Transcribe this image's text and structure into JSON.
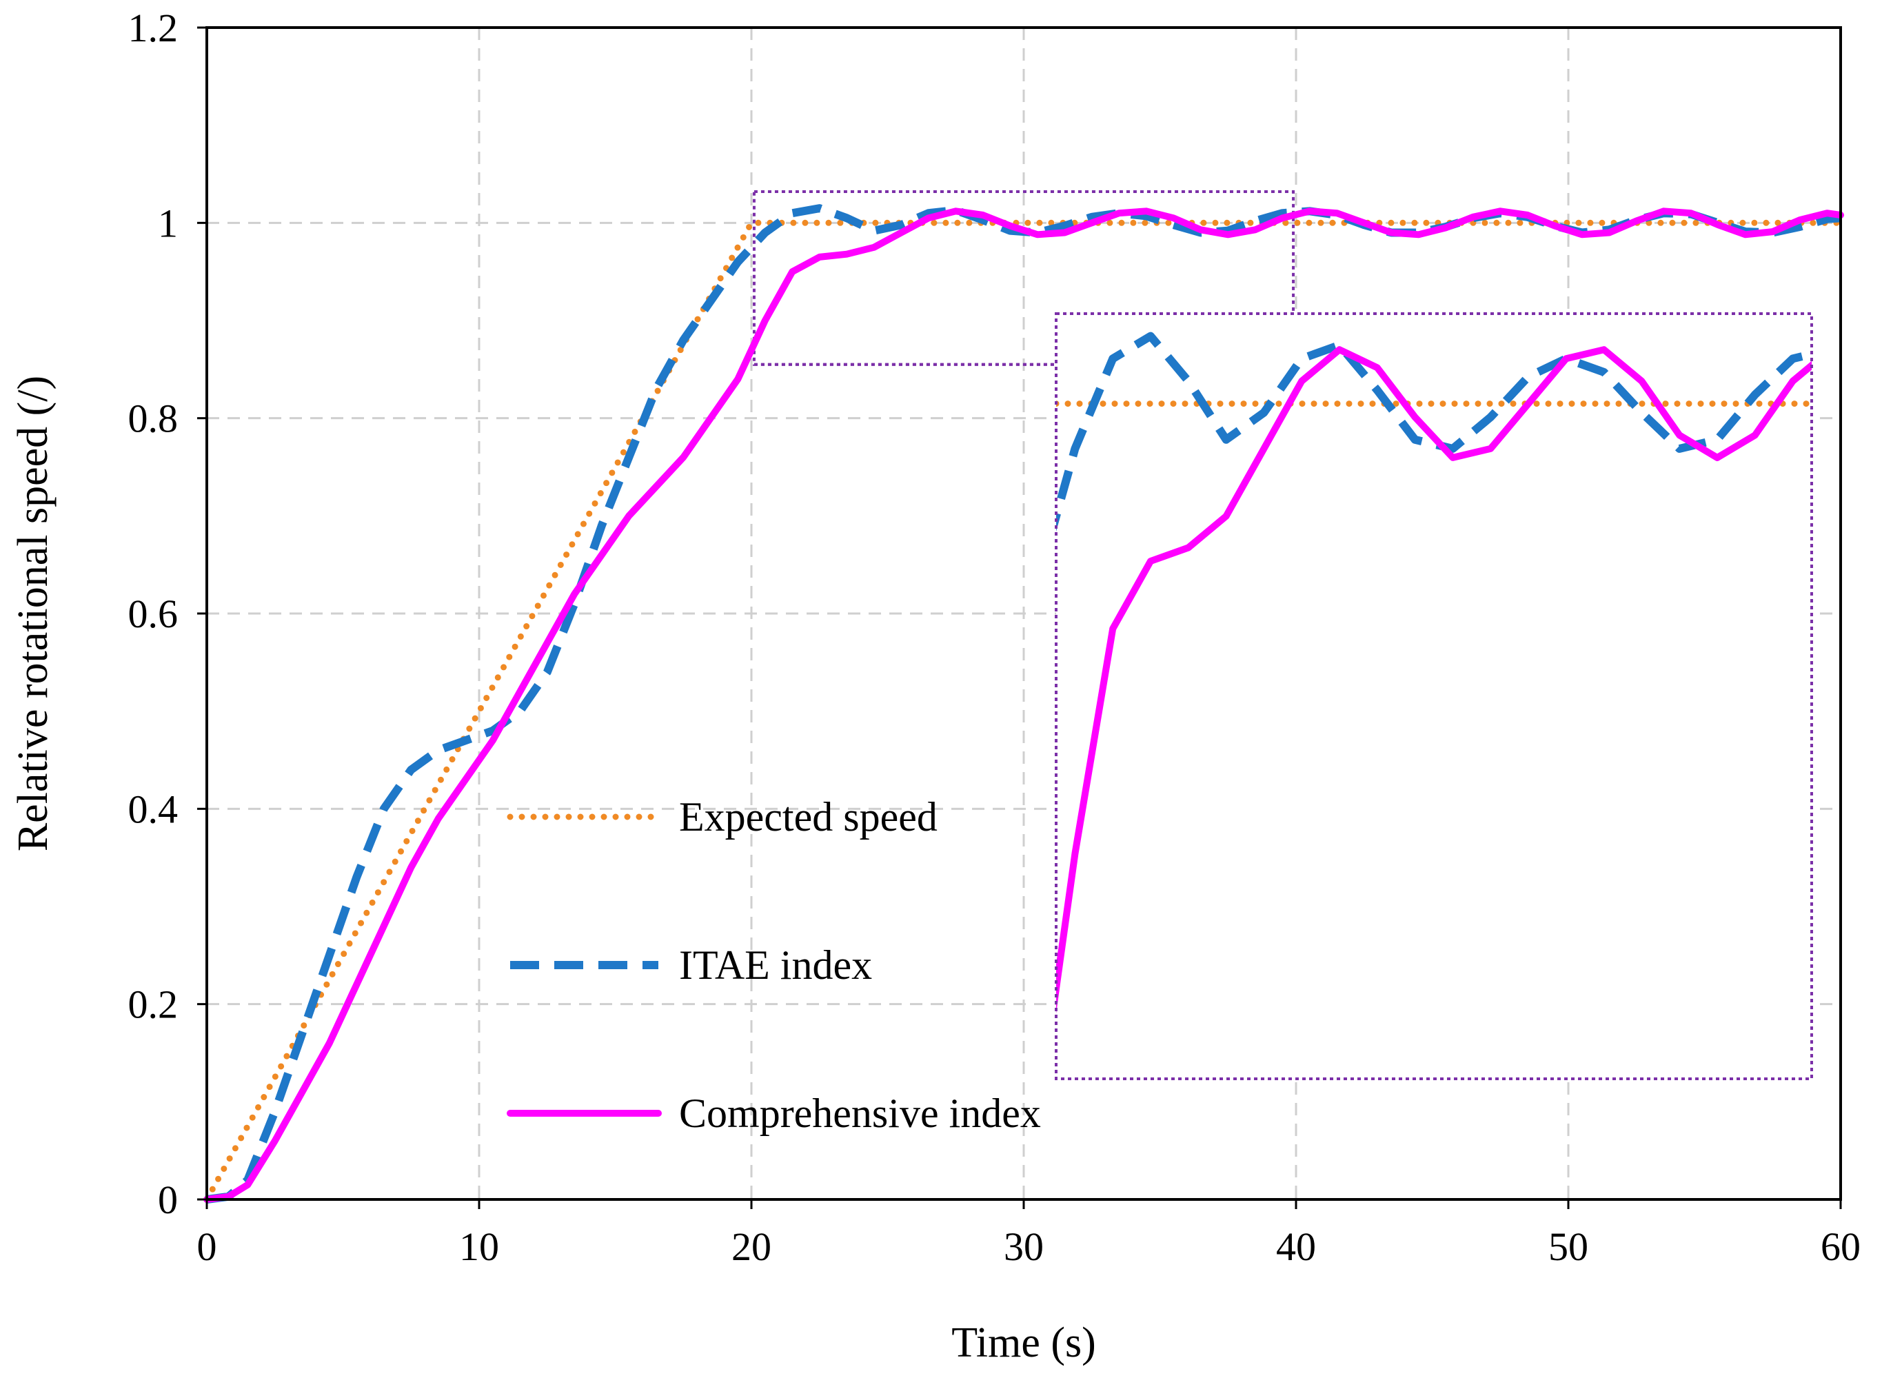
{
  "chart_data": {
    "type": "line",
    "title": "",
    "xlabel": "Time (s)",
    "ylabel": "Relative rotational speed (/)",
    "xlim": [
      0,
      60
    ],
    "ylim": [
      0,
      1.2
    ],
    "x_ticks": [
      0,
      10,
      20,
      30,
      40,
      50,
      60
    ],
    "y_ticks": [
      0,
      0.2,
      0.4,
      0.6,
      0.8,
      1,
      1.2
    ],
    "x_tick_labels": [
      "0",
      "10",
      "20",
      "30",
      "40",
      "50",
      "60"
    ],
    "y_tick_labels": [
      "0",
      "0.2",
      "0.4",
      "0.6",
      "0.8",
      "1",
      "1.2"
    ],
    "grid": true,
    "legend_position": "center",
    "series": [
      {
        "name": "Expected speed",
        "style": "dotted",
        "color": "#F08A24",
        "x": [
          0,
          20,
          60
        ],
        "y": [
          0,
          1,
          1
        ]
      },
      {
        "name": "ITAE index",
        "style": "dashed",
        "color": "#1F78C8",
        "x": [
          0,
          0.8,
          1.5,
          2.5,
          3.5,
          4.5,
          5.5,
          6.5,
          7.5,
          8.5,
          9.5,
          10.5,
          11.5,
          12.5,
          13.5,
          14.5,
          15.5,
          16.5,
          17.5,
          18.5,
          19.5,
          20.5,
          21.5,
          22.5,
          23.5,
          24.5,
          25.5,
          26.5,
          27.5,
          28.5,
          29.5,
          30.5,
          31.5,
          32.5,
          33.5,
          34.5,
          35.5,
          36.5,
          37.5,
          38.5,
          39.5,
          40.5,
          41.5,
          42.5,
          43.5,
          44.5,
          45.5,
          46.5,
          47.5,
          48.5,
          49.5,
          50.5,
          51.5,
          52.5,
          53.5,
          54.5,
          55.5,
          56.5,
          57.5,
          58.5,
          59.5,
          60
        ],
        "y": [
          0,
          0.003,
          0.02,
          0.09,
          0.17,
          0.25,
          0.33,
          0.4,
          0.44,
          0.46,
          0.47,
          0.48,
          0.5,
          0.54,
          0.61,
          0.69,
          0.76,
          0.83,
          0.88,
          0.92,
          0.96,
          0.99,
          1.01,
          1.015,
          1.005,
          0.992,
          0.998,
          1.01,
          1.013,
          1.003,
          0.992,
          0.99,
          0.997,
          1.006,
          1.01,
          1.007,
          0.998,
          0.99,
          0.992,
          1.002,
          1.01,
          1.012,
          1.008,
          0.998,
          0.99,
          0.99,
          0.996,
          1.005,
          1.01,
          1.006,
          0.997,
          0.99,
          0.993,
          1.003,
          1.01,
          1.009,
          1.0,
          0.991,
          0.99,
          0.996,
          1.004,
          1.005
        ]
      },
      {
        "name": "Comprehensive index",
        "style": "solid",
        "color": "#FF00FF",
        "x": [
          0,
          0.8,
          1.5,
          2.5,
          3.5,
          4.5,
          5.5,
          6.5,
          7.5,
          8.5,
          9.5,
          10.5,
          11.5,
          12.5,
          13.5,
          14.5,
          15.5,
          16.5,
          17.5,
          18.5,
          19.5,
          20.5,
          21.5,
          22.5,
          23.5,
          24.5,
          25.5,
          26.5,
          27.5,
          28.5,
          29.5,
          30.5,
          31.5,
          32.5,
          33.5,
          34.5,
          35.5,
          36.5,
          37.5,
          38.5,
          39.5,
          40.5,
          41.5,
          42.5,
          43.5,
          44.5,
          45.5,
          46.5,
          47.5,
          48.5,
          49.5,
          50.5,
          51.5,
          52.5,
          53.5,
          54.5,
          55.5,
          56.5,
          57.5,
          58.5,
          59.5,
          60
        ],
        "y": [
          0,
          0.003,
          0.015,
          0.06,
          0.11,
          0.16,
          0.22,
          0.28,
          0.34,
          0.39,
          0.43,
          0.47,
          0.52,
          0.57,
          0.62,
          0.66,
          0.7,
          0.73,
          0.76,
          0.8,
          0.84,
          0.9,
          0.95,
          0.965,
          0.968,
          0.975,
          0.99,
          1.005,
          1.012,
          1.008,
          0.997,
          0.988,
          0.99,
          1.0,
          1.01,
          1.012,
          1.005,
          0.993,
          0.988,
          0.993,
          1.005,
          1.012,
          1.01,
          1.0,
          0.99,
          0.988,
          0.995,
          1.006,
          1.012,
          1.008,
          0.997,
          0.988,
          0.99,
          1.002,
          1.012,
          1.01,
          0.998,
          0.988,
          0.991,
          1.003,
          1.01,
          1.008
        ]
      }
    ],
    "inset": {
      "source_box": {
        "x": [
          20.1,
          39.9
        ],
        "y": [
          0.855,
          1.032
        ]
      },
      "xlim": [
        20,
        40
      ],
      "ylim": [
        0.85,
        1.02
      ]
    }
  }
}
